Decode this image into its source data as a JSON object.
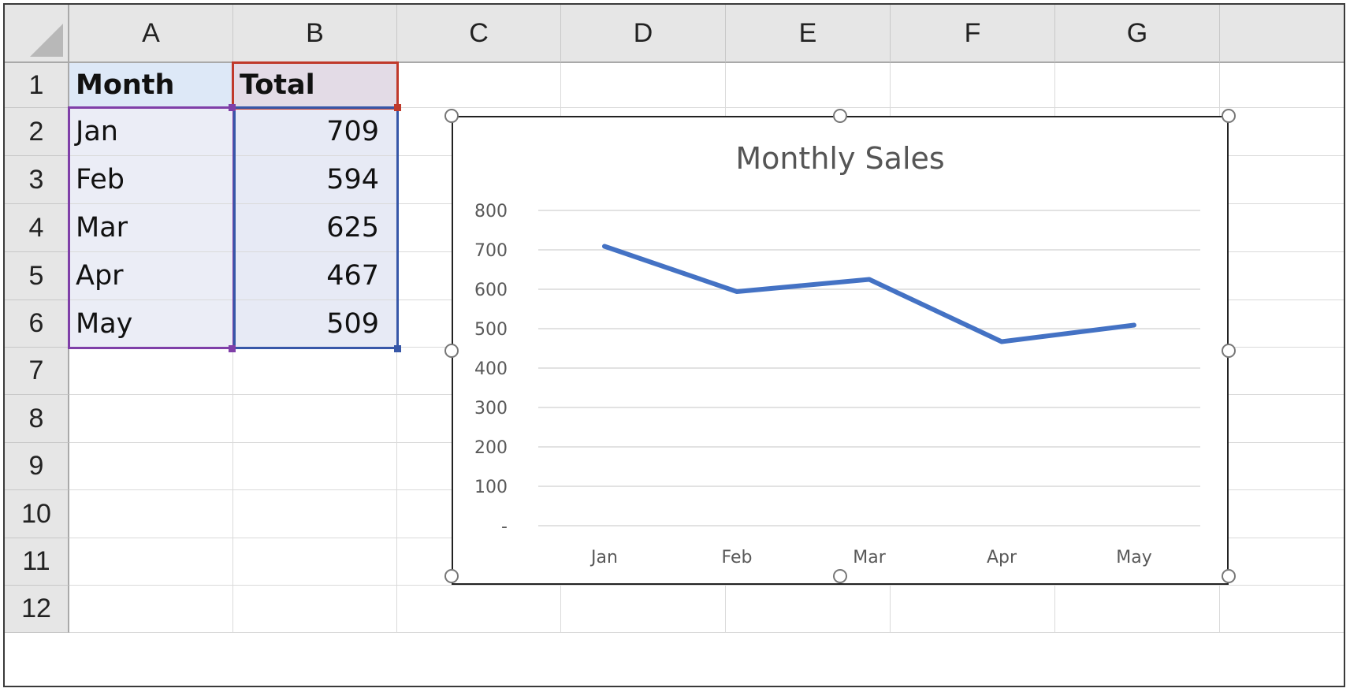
{
  "sheet": {
    "columns": [
      "A",
      "B",
      "C",
      "D",
      "E",
      "F",
      "G"
    ],
    "rows": [
      "1",
      "2",
      "3",
      "4",
      "5",
      "6",
      "7",
      "8",
      "9",
      "10",
      "11",
      "12"
    ],
    "cells": {
      "A1": "Month",
      "B1": "Total",
      "A2": "Jan",
      "B2": "709",
      "A3": "Feb",
      "B3": "594",
      "A4": "Mar",
      "B4": "625",
      "A5": "Apr",
      "B5": "467",
      "A6": "May",
      "B6": "509"
    }
  },
  "chart_data": {
    "type": "line",
    "title": "Monthly Sales",
    "categories": [
      "Jan",
      "Feb",
      "Mar",
      "Apr",
      "May"
    ],
    "series": [
      {
        "values": [
          709,
          594,
          625,
          467,
          509
        ],
        "color": "#4472c4"
      }
    ],
    "y_tick_labels": [
      "-",
      "100",
      "200",
      "300",
      "400",
      "500",
      "600",
      "700",
      "800"
    ],
    "ylim": [
      0,
      800
    ],
    "grid": true,
    "legend": "none",
    "xlabel": "",
    "ylabel": ""
  }
}
